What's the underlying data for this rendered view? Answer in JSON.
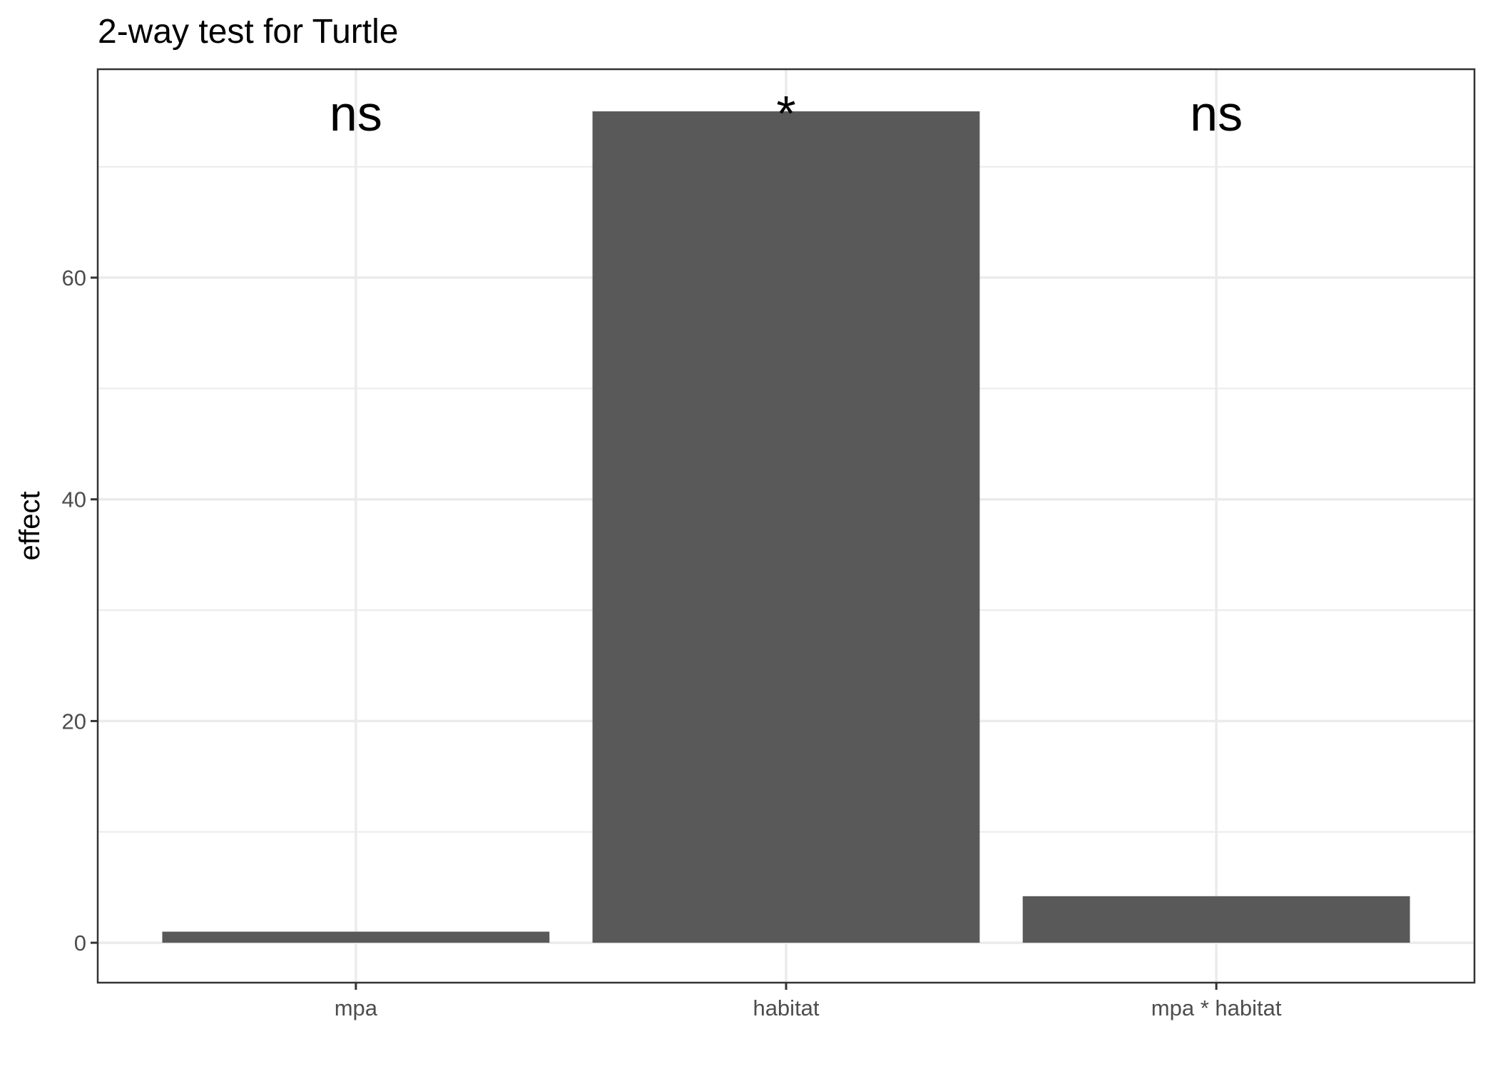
{
  "chart_data": {
    "type": "bar",
    "title": "2-way test for Turtle",
    "xlabel": "",
    "ylabel": "effect",
    "categories": [
      "mpa",
      "habitat",
      "mpa * habitat"
    ],
    "values": [
      1.0,
      75.0,
      4.2
    ],
    "annotations": [
      "ns",
      "*",
      "ns"
    ],
    "ylim": [
      -3.6,
      78.8
    ],
    "y_ticks": [
      0,
      20,
      40,
      60
    ],
    "y_tick_labels": [
      "0",
      "20",
      "40",
      "60"
    ],
    "grid": true,
    "bar_color": "#595959",
    "grid_color": "#ebebeb",
    "axis_color": "#333333",
    "tick_label_color": "#4d4d4d"
  }
}
